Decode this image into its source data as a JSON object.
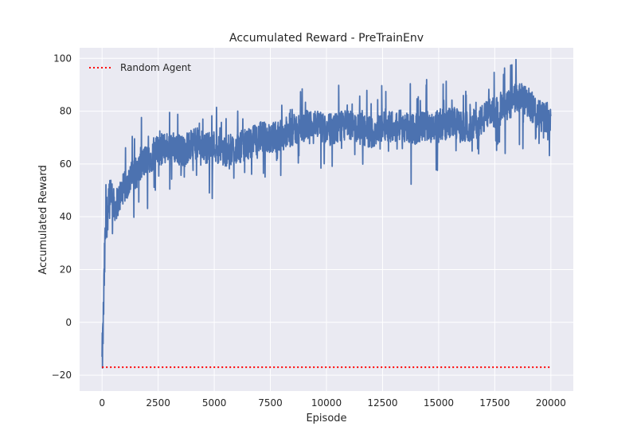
{
  "chart_data": {
    "type": "line",
    "title": "Accumulated Reward - PreTrainEnv",
    "xlabel": "Episode",
    "ylabel": "Accumulated Reward",
    "xlim": [
      -1000,
      21000
    ],
    "ylim": [
      -26,
      104
    ],
    "xticks": [
      0,
      2500,
      5000,
      7500,
      10000,
      12500,
      15000,
      17500,
      20000
    ],
    "yticks": [
      -20,
      0,
      20,
      40,
      60,
      80,
      100
    ],
    "xtick_labels": [
      "0",
      "2500",
      "5000",
      "7500",
      "10000",
      "12500",
      "15000",
      "17500",
      "20000"
    ],
    "ytick_labels": [
      "−20",
      "0",
      "20",
      "40",
      "60",
      "80",
      "100"
    ],
    "grid": true,
    "legend_position": "top-left",
    "colors": {
      "series": "#4c72b0",
      "baseline": "#ff0000",
      "background": "#eaeaf2",
      "grid": "#ffffff"
    },
    "series": [
      {
        "x": [
          0,
          40,
          80,
          120,
          160,
          200,
          250,
          300,
          400,
          500,
          600,
          700,
          800,
          900,
          1000,
          1200,
          1400,
          1600,
          1800,
          2000,
          2200,
          2500,
          2800,
          3000,
          3300,
          3600,
          4000,
          4300,
          4600,
          5000,
          5300,
          5600,
          6000,
          6300,
          6600,
          7000,
          7300,
          7600,
          8000,
          8300,
          8600,
          9000,
          9300,
          9600,
          10000,
          10300,
          10600,
          11000,
          11300,
          11600,
          12000,
          12300,
          12600,
          13000,
          13300,
          13600,
          14000,
          14300,
          14600,
          15000,
          15300,
          15600,
          16000,
          16300,
          16600,
          17000,
          17300,
          17600,
          18000,
          18300,
          18600,
          19000,
          19300,
          19600,
          20000
        ],
        "values": [
          -16,
          -5,
          10,
          25,
          35,
          40,
          44,
          48,
          52,
          45,
          44,
          46,
          48,
          50,
          51,
          54,
          56,
          57,
          60,
          62,
          63,
          65,
          66,
          67,
          66,
          65,
          67,
          68,
          66,
          67,
          65,
          65,
          66,
          67,
          68,
          70,
          70,
          70,
          71,
          72,
          73,
          74,
          75,
          74,
          73,
          73,
          74,
          75,
          74,
          73,
          72,
          73,
          75,
          74,
          75,
          74,
          73,
          74,
          75,
          75,
          75,
          76,
          74,
          74,
          75,
          77,
          79,
          80,
          81,
          84,
          85,
          83,
          80,
          78,
          78
        ],
        "noise_amplitude": 6
      },
      {
        "name": "Random Agent",
        "x": [
          0,
          20000
        ],
        "values": [
          -17,
          -17
        ]
      }
    ]
  }
}
